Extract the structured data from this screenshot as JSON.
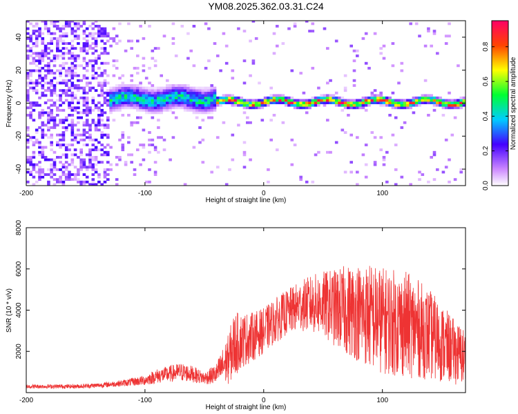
{
  "title": "YM08.2025.362.03.31.C24",
  "chart_data": [
    {
      "type": "heatmap",
      "title": "YM08.2025.362.03.31.C24",
      "xlabel": "Height of straight line (km)",
      "ylabel": "Frequency (Hz)",
      "xlim": [
        -200,
        170
      ],
      "ylim": [
        -50,
        50
      ],
      "x_ticks": [
        -200,
        -100,
        0,
        100
      ],
      "y_ticks": [
        -40,
        -20,
        0,
        20,
        40
      ],
      "colorbar": {
        "label": "Normalized spectral amplitude",
        "range": [
          0,
          0.95
        ],
        "ticks": [
          0.0,
          0.2,
          0.4,
          0.6,
          0.8
        ],
        "tick_labels": [
          "0.0",
          "0.2",
          "0.4",
          "0.6",
          "0.8"
        ],
        "colormap": "rainbow"
      },
      "regions": [
        {
          "x_range": [
            -200,
            -130
          ],
          "description": "broadband noise",
          "amplitude": 0.1
        },
        {
          "x_range": [
            -130,
            -40
          ],
          "band_center_hz": 2,
          "band_halfwidth_hz": 8,
          "peak_amplitude": 0.5
        },
        {
          "x_range": [
            -40,
            170
          ],
          "band_center_hz": 0,
          "band_halfwidth_hz": 3,
          "peak_amplitude": 0.9
        }
      ]
    },
    {
      "type": "line",
      "xlabel": "Height of straight line (km)",
      "ylabel": "SNR (10 * v/v)",
      "xlim": [
        -200,
        170
      ],
      "ylim": [
        0,
        8000
      ],
      "x_ticks": [
        -200,
        -100,
        0,
        100
      ],
      "y_ticks": [
        2000,
        4000,
        6000,
        8000
      ],
      "series": [
        {
          "name": "SNR",
          "color": "#ee3333",
          "x": [
            -200,
            -180,
            -160,
            -140,
            -120,
            -100,
            -90,
            -80,
            -70,
            -60,
            -50,
            -40,
            -30,
            -25,
            -20,
            -10,
            0,
            10,
            20,
            30,
            40,
            50,
            60,
            70,
            80,
            90,
            100,
            110,
            120,
            130,
            140,
            150,
            160,
            170
          ],
          "mean": [
            300,
            300,
            300,
            350,
            450,
            600,
            800,
            900,
            1000,
            900,
            700,
            900,
            1600,
            2300,
            2500,
            2700,
            3000,
            3500,
            3900,
            4200,
            4300,
            4300,
            4100,
            4000,
            3900,
            3700,
            3500,
            3400,
            3300,
            3100,
            2800,
            2400,
            2000,
            1700
          ],
          "spread": [
            100,
            100,
            100,
            120,
            150,
            250,
            350,
            400,
            450,
            400,
            300,
            500,
            1200,
            1600,
            1400,
            1200,
            1100,
            1100,
            1100,
            1200,
            1400,
            1600,
            1900,
            2200,
            2400,
            2600,
            2600,
            2600,
            2600,
            2400,
            2200,
            1900,
            1600,
            1400
          ]
        }
      ]
    }
  ]
}
